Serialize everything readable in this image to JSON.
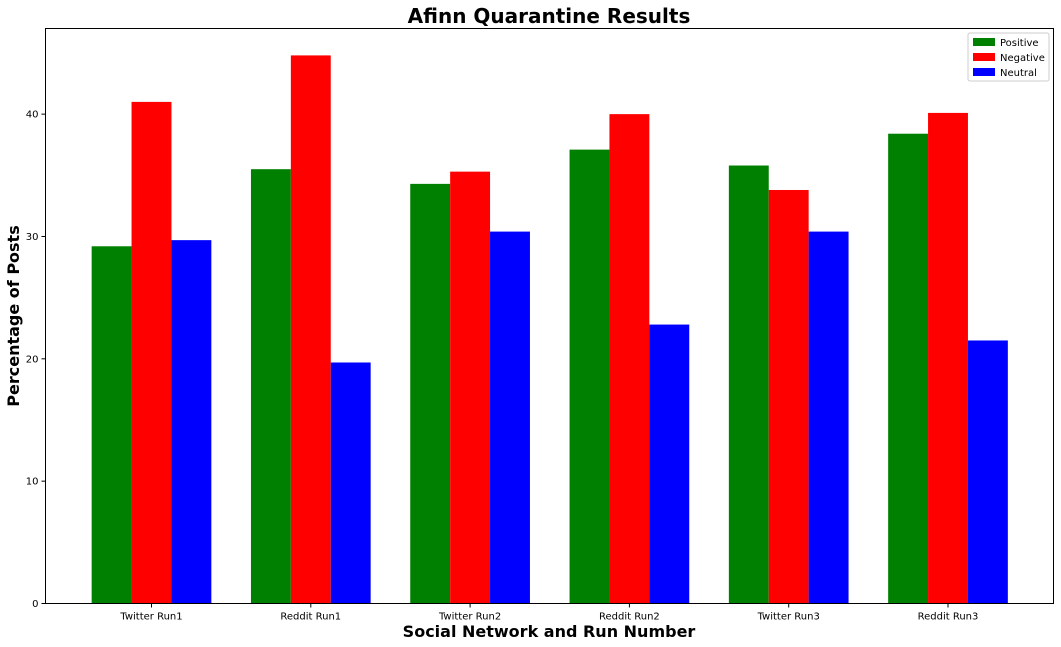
{
  "chart_data": {
    "type": "bar",
    "title": "Afinn Quarantine Results",
    "xlabel": "Social Network and Run Number",
    "ylabel": "Percentage of Posts",
    "categories": [
      "Twitter Run1",
      "Reddit Run1",
      "Twitter Run2",
      "Reddit Run2",
      "Twitter Run3",
      "Reddit Run3"
    ],
    "series": [
      {
        "name": "Positive",
        "color": "#008000",
        "values": [
          29.2,
          35.5,
          34.3,
          37.1,
          35.8,
          38.4
        ]
      },
      {
        "name": "Negative",
        "color": "#ff0000",
        "values": [
          41.0,
          44.8,
          35.3,
          40.0,
          33.8,
          40.1
        ]
      },
      {
        "name": "Neutral",
        "color": "#0000ff",
        "values": [
          29.7,
          19.7,
          30.4,
          22.8,
          30.4,
          21.5
        ]
      }
    ],
    "yticks": [
      "0",
      "10",
      "20",
      "30",
      "40"
    ],
    "ylim": [
      0,
      47
    ],
    "legend_position": "top-right",
    "grid": false
  }
}
